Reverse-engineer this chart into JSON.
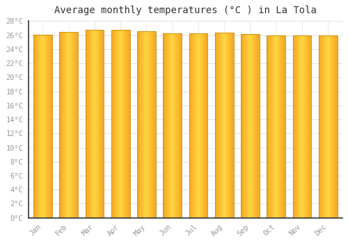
{
  "title": "Average monthly temperatures (°C ) in La Tola",
  "months": [
    "Jan",
    "Feb",
    "Mar",
    "Apr",
    "May",
    "Jun",
    "Jul",
    "Aug",
    "Sep",
    "Oct",
    "Nov",
    "Dec"
  ],
  "values": [
    26.1,
    26.5,
    26.8,
    26.8,
    26.6,
    26.3,
    26.3,
    26.4,
    26.2,
    26.0,
    26.0,
    26.0
  ],
  "bar_color_center": "#FFD740",
  "bar_color_edge": "#F5A623",
  "background_color": "#FFFFFF",
  "plot_bg_color": "#FFFFFF",
  "grid_color": "#E0E0E0",
  "ylim": [
    0,
    28
  ],
  "yticks": [
    0,
    2,
    4,
    6,
    8,
    10,
    12,
    14,
    16,
    18,
    20,
    22,
    24,
    26,
    28
  ],
  "title_fontsize": 10,
  "tick_fontsize": 7.5,
  "tick_color": "#999999",
  "axis_color": "#333333",
  "bar_width": 0.72,
  "figsize": [
    5.0,
    3.5
  ],
  "dpi": 100
}
